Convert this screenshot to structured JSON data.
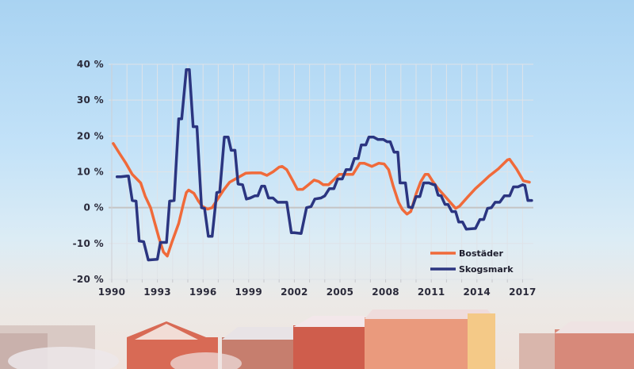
{
  "chart_data": {
    "type": "line",
    "title": "",
    "xlabel": "",
    "ylabel": "",
    "xlim": [
      1990,
      2017.75
    ],
    "ylim": [
      -20,
      40
    ],
    "grid": true,
    "legend_position": "bottom-right",
    "x_ticks": [
      1990,
      1993,
      1996,
      1999,
      2002,
      2005,
      2008,
      2011,
      2014,
      2017
    ],
    "x_tick_labels": [
      "1990",
      "1993",
      "1996",
      "1999",
      "2002",
      "2005",
      "2008",
      "2011",
      "2014",
      "2017"
    ],
    "y_ticks": [
      -20,
      -10,
      0,
      10,
      20,
      30,
      40
    ],
    "y_tick_labels": [
      "-20 %",
      "-10 %",
      "0 %",
      "10 %",
      "20 %",
      "30 %",
      "40 %"
    ],
    "series": [
      {
        "name": "Bostäder",
        "color": "#f06a3a",
        "points": [
          [
            1990.1,
            17.9
          ],
          [
            1990.5,
            15.2
          ],
          [
            1990.9,
            12.6
          ],
          [
            1991.35,
            9.3
          ],
          [
            1991.6,
            8.2
          ],
          [
            1991.9,
            6.9
          ],
          [
            1992.2,
            3.2
          ],
          [
            1992.55,
            0
          ],
          [
            1992.85,
            -4.6
          ],
          [
            1993.1,
            -8.4
          ],
          [
            1993.4,
            -12.4
          ],
          [
            1993.65,
            -13.5
          ],
          [
            1993.95,
            -9.7
          ],
          [
            1994.4,
            -4.4
          ],
          [
            1994.7,
            0.9
          ],
          [
            1994.9,
            4.2
          ],
          [
            1995.05,
            4.9
          ],
          [
            1995.4,
            4.0
          ],
          [
            1995.7,
            1.8
          ],
          [
            1995.95,
            0.4
          ],
          [
            1996.3,
            -0.4
          ],
          [
            1996.6,
            0
          ],
          [
            1996.9,
            2.0
          ],
          [
            1997.35,
            4.9
          ],
          [
            1997.75,
            7.1
          ],
          [
            1998.3,
            8.4
          ],
          [
            1998.8,
            9.6
          ],
          [
            1999.2,
            9.7
          ],
          [
            1999.8,
            9.7
          ],
          [
            2000.2,
            9.0
          ],
          [
            2000.6,
            10.0
          ],
          [
            2001.0,
            11.3
          ],
          [
            2001.2,
            11.5
          ],
          [
            2001.5,
            10.6
          ],
          [
            2001.9,
            7.5
          ],
          [
            2002.2,
            5.1
          ],
          [
            2002.55,
            5.1
          ],
          [
            2002.9,
            6.3
          ],
          [
            2003.3,
            7.7
          ],
          [
            2003.6,
            7.3
          ],
          [
            2003.9,
            6.4
          ],
          [
            2004.25,
            6.4
          ],
          [
            2004.6,
            7.8
          ],
          [
            2004.95,
            9.3
          ],
          [
            2005.4,
            9.3
          ],
          [
            2005.85,
            9.3
          ],
          [
            2006.3,
            12.4
          ],
          [
            2006.6,
            12.4
          ],
          [
            2007.1,
            11.5
          ],
          [
            2007.55,
            12.4
          ],
          [
            2007.9,
            12.2
          ],
          [
            2008.2,
            10.6
          ],
          [
            2008.5,
            6.0
          ],
          [
            2008.85,
            1.5
          ],
          [
            2009.1,
            -0.5
          ],
          [
            2009.4,
            -1.8
          ],
          [
            2009.65,
            -1.1
          ],
          [
            2010.0,
            3.8
          ],
          [
            2010.3,
            7.2
          ],
          [
            2010.6,
            9.3
          ],
          [
            2010.8,
            9.3
          ],
          [
            2011.1,
            7.3
          ],
          [
            2011.45,
            5.3
          ],
          [
            2012.0,
            2.7
          ],
          [
            2012.3,
            1.2
          ],
          [
            2012.6,
            -0.2
          ],
          [
            2012.85,
            0.4
          ],
          [
            2013.4,
            3.0
          ],
          [
            2013.9,
            5.3
          ],
          [
            2014.4,
            7.2
          ],
          [
            2014.8,
            8.8
          ],
          [
            2015.4,
            10.8
          ],
          [
            2016.0,
            13.3
          ],
          [
            2016.15,
            13.5
          ],
          [
            2016.6,
            10.8
          ],
          [
            2017.05,
            7.5
          ],
          [
            2017.45,
            7.1
          ]
        ]
      },
      {
        "name": "Skogsmark",
        "color": "#2b3580",
        "points": [
          [
            1990.35,
            8.6
          ],
          [
            1990.6,
            8.6
          ],
          [
            1991.0,
            8.8
          ],
          [
            1991.1,
            8.8
          ],
          [
            1991.35,
            2.0
          ],
          [
            1991.6,
            1.8
          ],
          [
            1991.8,
            -9.3
          ],
          [
            1992.1,
            -9.5
          ],
          [
            1992.4,
            -14.6
          ],
          [
            1993.0,
            -14.4
          ],
          [
            1993.2,
            -9.7
          ],
          [
            1993.6,
            -9.7
          ],
          [
            1993.8,
            1.8
          ],
          [
            1994.1,
            2.0
          ],
          [
            1994.4,
            24.8
          ],
          [
            1994.6,
            24.8
          ],
          [
            1994.9,
            38.5
          ],
          [
            1995.1,
            38.5
          ],
          [
            1995.35,
            22.6
          ],
          [
            1995.6,
            22.6
          ],
          [
            1995.9,
            0
          ],
          [
            1996.1,
            -0.2
          ],
          [
            1996.35,
            -8.0
          ],
          [
            1996.6,
            -8.0
          ],
          [
            1996.9,
            4.2
          ],
          [
            1997.1,
            4.4
          ],
          [
            1997.4,
            19.7
          ],
          [
            1997.65,
            19.7
          ],
          [
            1997.85,
            16.0
          ],
          [
            1998.1,
            16.0
          ],
          [
            1998.3,
            6.6
          ],
          [
            1998.6,
            6.4
          ],
          [
            1998.85,
            2.4
          ],
          [
            1999.1,
            2.7
          ],
          [
            1999.4,
            3.3
          ],
          [
            1999.6,
            3.3
          ],
          [
            1999.85,
            6.0
          ],
          [
            2000.05,
            6.0
          ],
          [
            2000.3,
            2.7
          ],
          [
            2000.6,
            2.7
          ],
          [
            2000.9,
            1.5
          ],
          [
            2001.5,
            1.5
          ],
          [
            2001.8,
            -7.0
          ],
          [
            2002.0,
            -7.0
          ],
          [
            2002.45,
            -7.2
          ],
          [
            2002.8,
            0
          ],
          [
            2003.1,
            0.3
          ],
          [
            2003.35,
            2.4
          ],
          [
            2003.75,
            2.7
          ],
          [
            2004.0,
            3.3
          ],
          [
            2004.3,
            5.3
          ],
          [
            2004.6,
            5.3
          ],
          [
            2004.85,
            8.0
          ],
          [
            2005.15,
            8.0
          ],
          [
            2005.4,
            10.6
          ],
          [
            2005.7,
            10.6
          ],
          [
            2005.95,
            13.7
          ],
          [
            2006.2,
            13.7
          ],
          [
            2006.4,
            17.5
          ],
          [
            2006.7,
            17.5
          ],
          [
            2006.9,
            19.7
          ],
          [
            2007.2,
            19.7
          ],
          [
            2007.5,
            19.0
          ],
          [
            2007.85,
            19.0
          ],
          [
            2008.1,
            18.4
          ],
          [
            2008.3,
            18.4
          ],
          [
            2008.55,
            15.5
          ],
          [
            2008.8,
            15.5
          ],
          [
            2008.95,
            6.9
          ],
          [
            2009.3,
            6.9
          ],
          [
            2009.5,
            0.2
          ],
          [
            2009.75,
            0
          ],
          [
            2010.0,
            3.1
          ],
          [
            2010.25,
            3.1
          ],
          [
            2010.5,
            6.9
          ],
          [
            2010.85,
            6.9
          ],
          [
            2011.15,
            6.4
          ],
          [
            2011.25,
            6.4
          ],
          [
            2011.45,
            3.5
          ],
          [
            2011.65,
            3.3
          ],
          [
            2011.9,
            0.9
          ],
          [
            2012.1,
            0.9
          ],
          [
            2012.35,
            -1.1
          ],
          [
            2012.6,
            -1.1
          ],
          [
            2012.8,
            -4.0
          ],
          [
            2013.05,
            -4.0
          ],
          [
            2013.3,
            -6.0
          ],
          [
            2013.9,
            -5.8
          ],
          [
            2014.2,
            -3.3
          ],
          [
            2014.45,
            -3.3
          ],
          [
            2014.7,
            -0.2
          ],
          [
            2014.95,
            0
          ],
          [
            2015.2,
            1.5
          ],
          [
            2015.5,
            1.5
          ],
          [
            2015.8,
            3.3
          ],
          [
            2016.15,
            3.3
          ],
          [
            2016.4,
            5.8
          ],
          [
            2016.7,
            5.8
          ],
          [
            2017.0,
            6.4
          ],
          [
            2017.15,
            6.2
          ],
          [
            2017.35,
            2.0
          ],
          [
            2017.6,
            2.0
          ]
        ]
      }
    ]
  }
}
